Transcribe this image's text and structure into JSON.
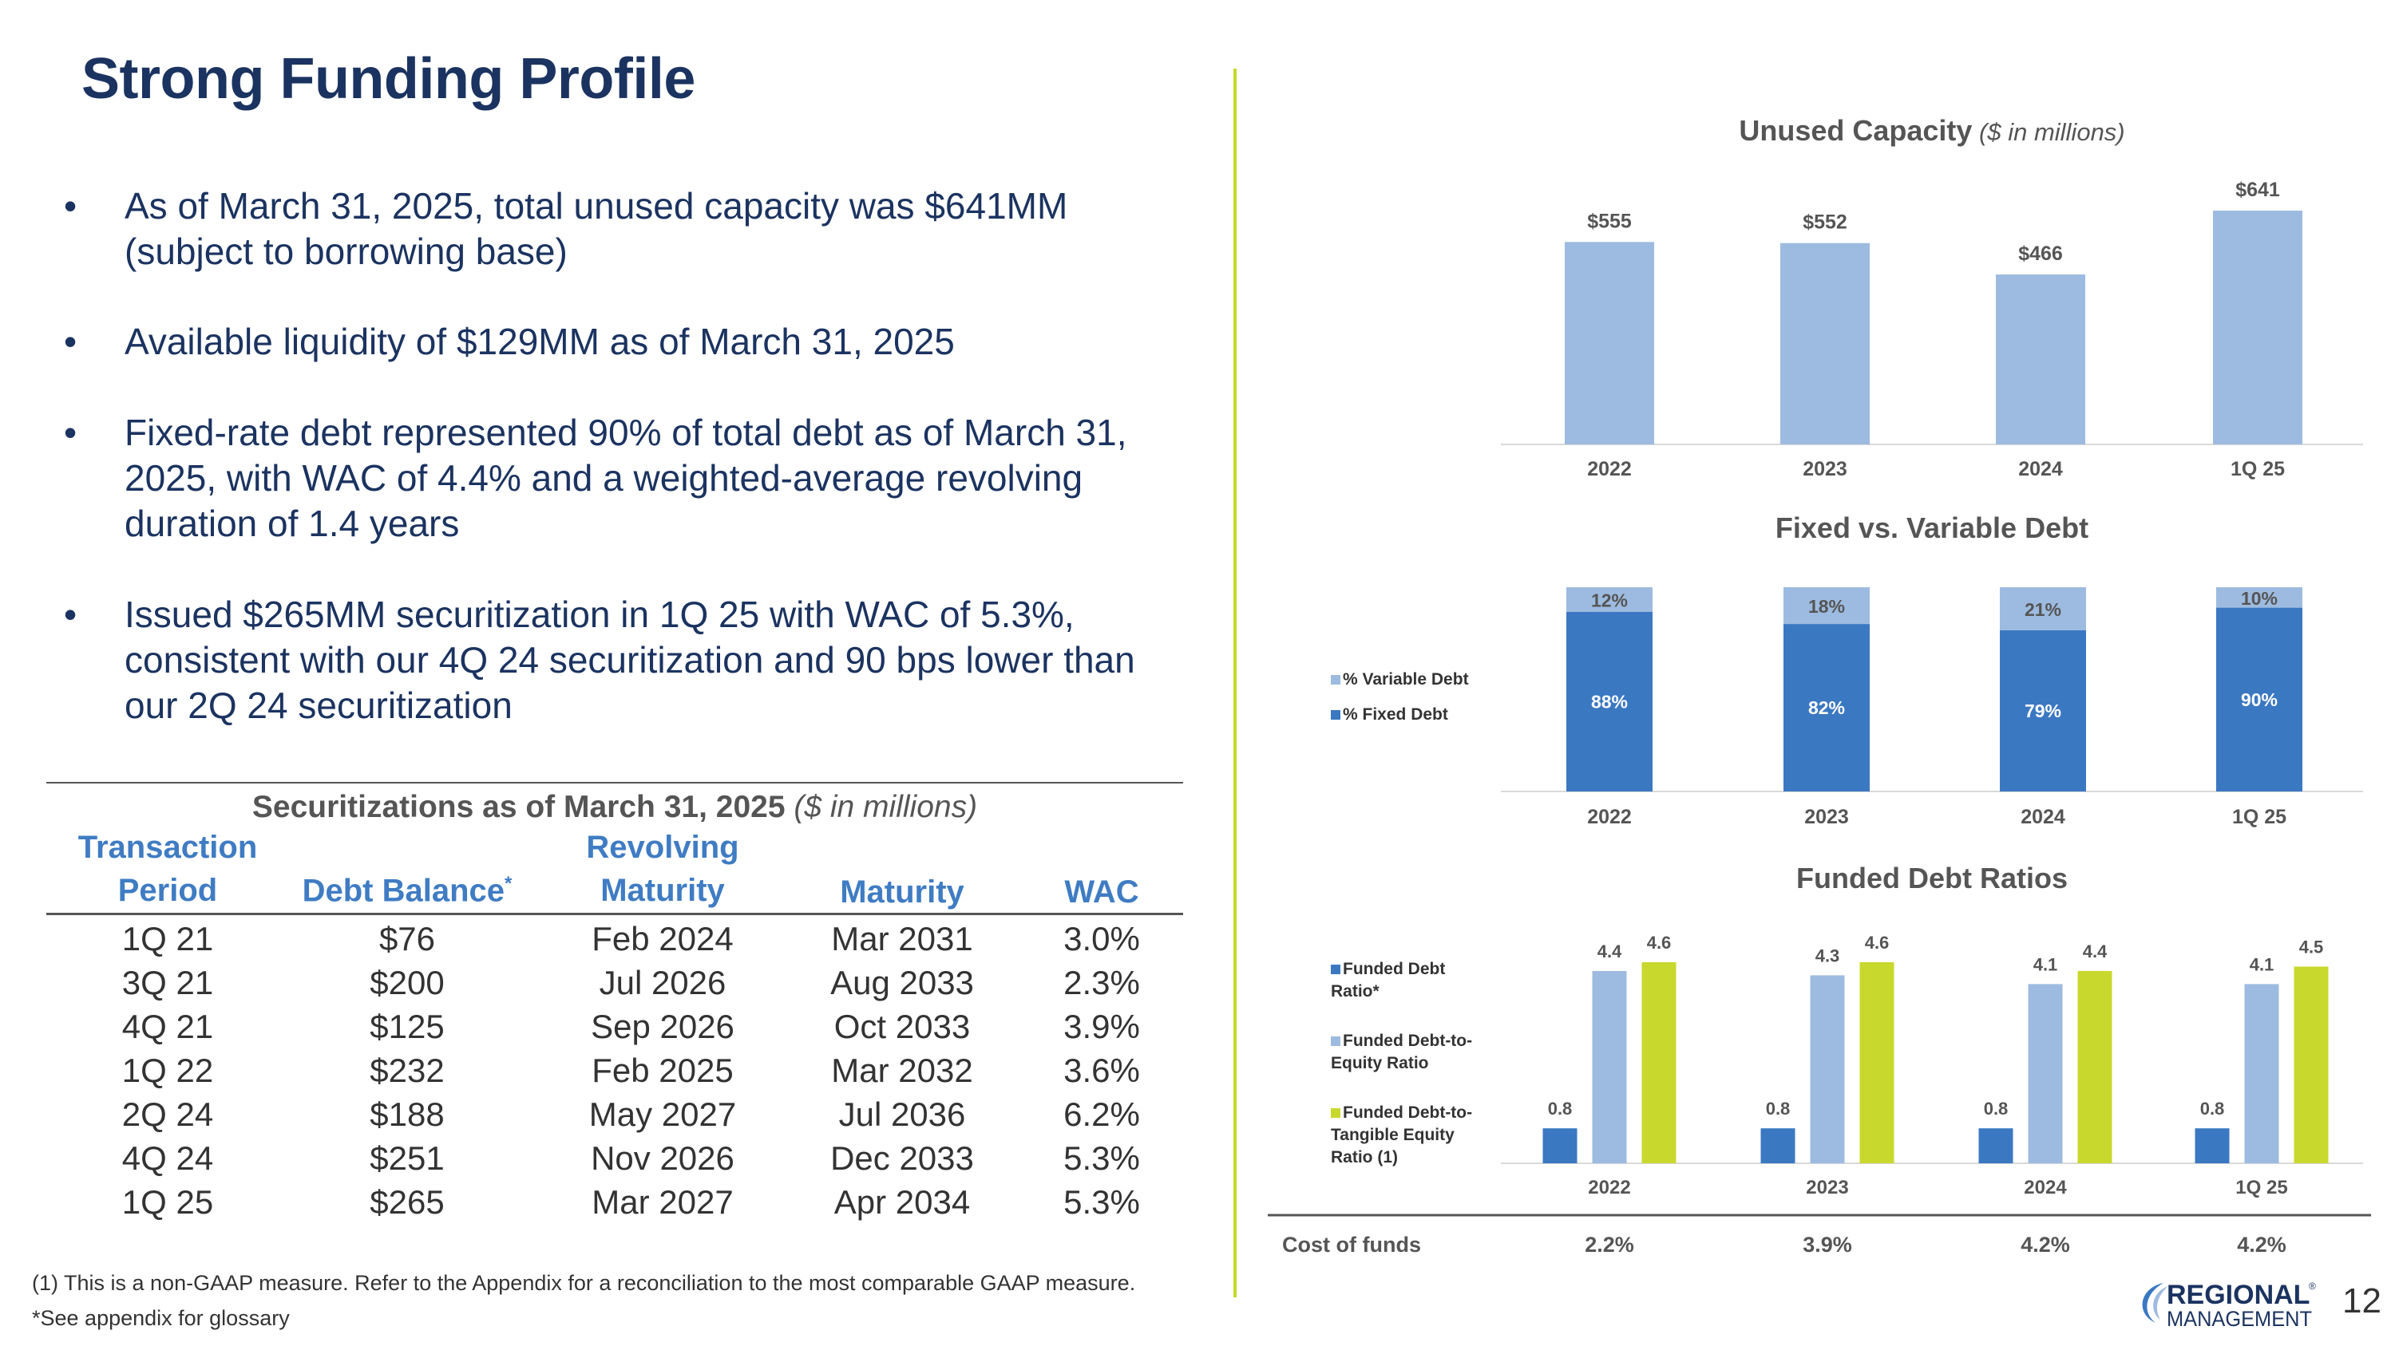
{
  "title": "Strong Funding Profile",
  "bullets": [
    "As of March 31, 2025, total unused capacity was $641MM (subject to borrowing base)",
    "Available liquidity of $129MM as of March 31, 2025",
    "Fixed-rate debt represented 90% of total debt as of March 31, 2025, with WAC of 4.4% and a weighted-average revolving duration of 1.4 years",
    "Issued $265MM securitization in 1Q 25 with WAC of 5.3%, consistent with our 4Q 24 securitization and 90 bps lower than our 2Q 24 securitization"
  ],
  "bullet_symbol": "•",
  "securitizations": {
    "title_bold": "Securitizations as of March 31, 2025",
    "title_italic": "($ in millions)",
    "headers": {
      "period_1": "Transaction",
      "period_2": "Period",
      "balance": "Debt Balance",
      "balance_mark": "*",
      "revolving_1": "Revolving",
      "revolving_2": "Maturity",
      "maturity": "Maturity",
      "wac": "WAC"
    },
    "rows": [
      {
        "period": "1Q 21",
        "balance": "$76",
        "revolving": "Feb 2024",
        "maturity": "Mar 2031",
        "wac": "3.0%"
      },
      {
        "period": "3Q 21",
        "balance": "$200",
        "revolving": "Jul 2026",
        "maturity": "Aug 2033",
        "wac": "2.3%"
      },
      {
        "period": "4Q 21",
        "balance": "$125",
        "revolving": "Sep 2026",
        "maturity": "Oct 2033",
        "wac": "3.9%"
      },
      {
        "period": "1Q 22",
        "balance": "$232",
        "revolving": "Feb 2025",
        "maturity": "Mar 2032",
        "wac": "3.6%"
      },
      {
        "period": "2Q 24",
        "balance": "$188",
        "revolving": "May 2027",
        "maturity": "Jul 2036",
        "wac": "6.2%"
      },
      {
        "period": "4Q 24",
        "balance": "$251",
        "revolving": "Nov 2026",
        "maturity": "Dec 2033",
        "wac": "5.3%"
      },
      {
        "period": "1Q 25",
        "balance": "$265",
        "revolving": "Mar 2027",
        "maturity": "Apr 2034",
        "wac": "5.3%"
      }
    ]
  },
  "footnote_1": "(1) This is a non-GAAP measure. Refer to the Appendix for a reconciliation to the most comparable GAAP measure.",
  "footnote_2": "*See appendix for glossary",
  "page_number": "12",
  "logo": {
    "line1": "REGIONAL",
    "line2": "MANAGEMENT",
    "mark": "®"
  },
  "colors": {
    "title": "#1b3360",
    "light_blue": "#9dbbe0",
    "dark_blue": "#3b78c2",
    "lime": "#c9d82c",
    "header_blue": "#3f7cc3"
  },
  "chart_data": [
    {
      "type": "bar",
      "title": "Unused Capacity",
      "title_note": "($ in millions)",
      "categories": [
        "2022",
        "2023",
        "2024",
        "1Q 25"
      ],
      "values": [
        555,
        552,
        466,
        641
      ],
      "labels": [
        "$555",
        "$552",
        "$466",
        "$641"
      ],
      "ylim": [
        0,
        700
      ]
    },
    {
      "type": "bar",
      "stacked": true,
      "title": "Fixed vs. Variable Debt",
      "categories": [
        "2022",
        "2023",
        "2024",
        "1Q 25"
      ],
      "series": [
        {
          "name": "% Fixed Debt",
          "values": [
            88,
            82,
            79,
            90
          ],
          "labels": [
            "88%",
            "82%",
            "79%",
            "90%"
          ]
        },
        {
          "name": "% Variable Debt",
          "values": [
            12,
            18,
            21,
            10
          ],
          "labels": [
            "12%",
            "18%",
            "21%",
            "10%"
          ]
        }
      ],
      "ylim": [
        0,
        100
      ],
      "legend": [
        "% Variable Debt",
        "% Fixed Debt"
      ]
    },
    {
      "type": "bar",
      "title": "Funded Debt Ratios",
      "categories": [
        "2022",
        "2023",
        "2024",
        "1Q 25"
      ],
      "series": [
        {
          "name": "Funded Debt Ratio*",
          "values": [
            0.8,
            0.8,
            0.8,
            0.8
          ],
          "labels": [
            "0.8",
            "0.8",
            "0.8",
            "0.8"
          ]
        },
        {
          "name": "Funded Debt-to-Equity Ratio",
          "values": [
            4.4,
            4.3,
            4.1,
            4.1
          ],
          "labels": [
            "4.4",
            "4.3",
            "4.1",
            "4.1"
          ]
        },
        {
          "name": "Funded Debt-to-Tangible Equity Ratio (1)",
          "values": [
            4.6,
            4.6,
            4.4,
            4.5
          ],
          "labels": [
            "4.6",
            "4.6",
            "4.4",
            "4.5"
          ]
        }
      ],
      "legend": [
        [
          "Funded Debt",
          "Ratio*"
        ],
        [
          "Funded Debt-to-",
          "Equity Ratio"
        ],
        [
          "Funded Debt-to-",
          "Tangible Equity",
          "Ratio (1)"
        ]
      ],
      "ylim": [
        0,
        5.2
      ]
    },
    {
      "type": "table",
      "title": "Cost of funds",
      "categories": [
        "2022",
        "2023",
        "2024",
        "1Q 25"
      ],
      "values": [
        "2.2%",
        "3.9%",
        "4.2%",
        "4.2%"
      ]
    }
  ]
}
